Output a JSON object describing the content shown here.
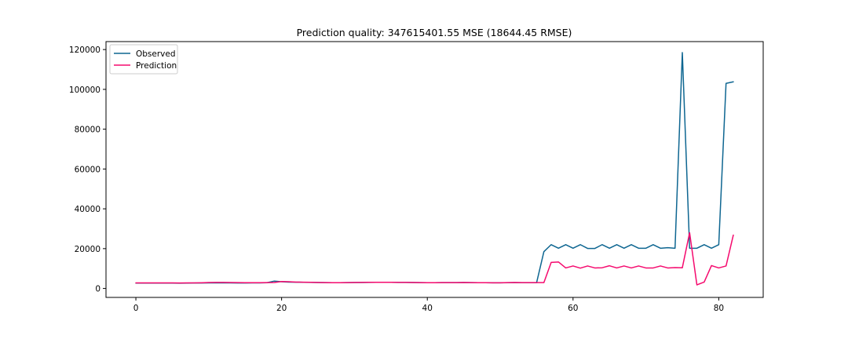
{
  "chart_data": {
    "type": "line",
    "title": "Prediction quality: 347615401.55 MSE (18644.45 RMSE)",
    "xlabel": "",
    "ylabel": "",
    "xlim": [
      -4.1,
      86.1
    ],
    "ylim": [
      -4500,
      124000
    ],
    "xticks": [
      0,
      20,
      40,
      60,
      80
    ],
    "yticks": [
      0,
      20000,
      40000,
      60000,
      80000,
      100000,
      120000
    ],
    "grid": false,
    "legend_position": "top-left",
    "series": [
      {
        "name": "Observed",
        "color": "#0e6691",
        "values": [
          2700,
          2700,
          2700,
          2700,
          2700,
          2700,
          2650,
          2700,
          2750,
          2750,
          2800,
          2800,
          2850,
          2800,
          2750,
          2750,
          2800,
          2800,
          2900,
          3700,
          3400,
          3200,
          3150,
          3100,
          3050,
          3000,
          2950,
          2900,
          2900,
          2950,
          3000,
          3000,
          3050,
          3100,
          3100,
          3100,
          3050,
          3050,
          3000,
          2950,
          2900,
          2900,
          2950,
          2950,
          2950,
          3000,
          2950,
          2900,
          2900,
          2850,
          2850,
          2900,
          2950,
          2900,
          2900,
          2900,
          18500,
          22000,
          20200,
          22000,
          20200,
          22000,
          20100,
          20100,
          22000,
          20200,
          22000,
          20200,
          22000,
          20200,
          20200,
          22000,
          20200,
          20500,
          20200,
          118500,
          20200,
          20200,
          22000,
          20200,
          22000,
          103000,
          103800
        ]
      },
      {
        "name": "Prediction",
        "color": "#f50a6e",
        "values": [
          2800,
          2800,
          2800,
          2800,
          2800,
          2800,
          2750,
          2800,
          2800,
          2850,
          3000,
          3050,
          3050,
          3000,
          2950,
          2900,
          2900,
          2900,
          2950,
          3000,
          3500,
          3400,
          3200,
          3150,
          3100,
          3000,
          2950,
          2900,
          2900,
          2950,
          3000,
          3050,
          3100,
          3100,
          3100,
          3100,
          3050,
          3050,
          3000,
          2950,
          2900,
          2900,
          2950,
          2950,
          2950,
          3000,
          2950,
          2900,
          2900,
          2850,
          2850,
          2950,
          3000,
          2950,
          2950,
          2950,
          2950,
          13100,
          13300,
          10300,
          11300,
          10200,
          11300,
          10300,
          10400,
          11400,
          10300,
          11300,
          10300,
          11300,
          10300,
          10300,
          11300,
          10300,
          10500,
          10400,
          28000,
          1800,
          3200,
          11500,
          10300,
          11300,
          26800
        ]
      }
    ]
  }
}
